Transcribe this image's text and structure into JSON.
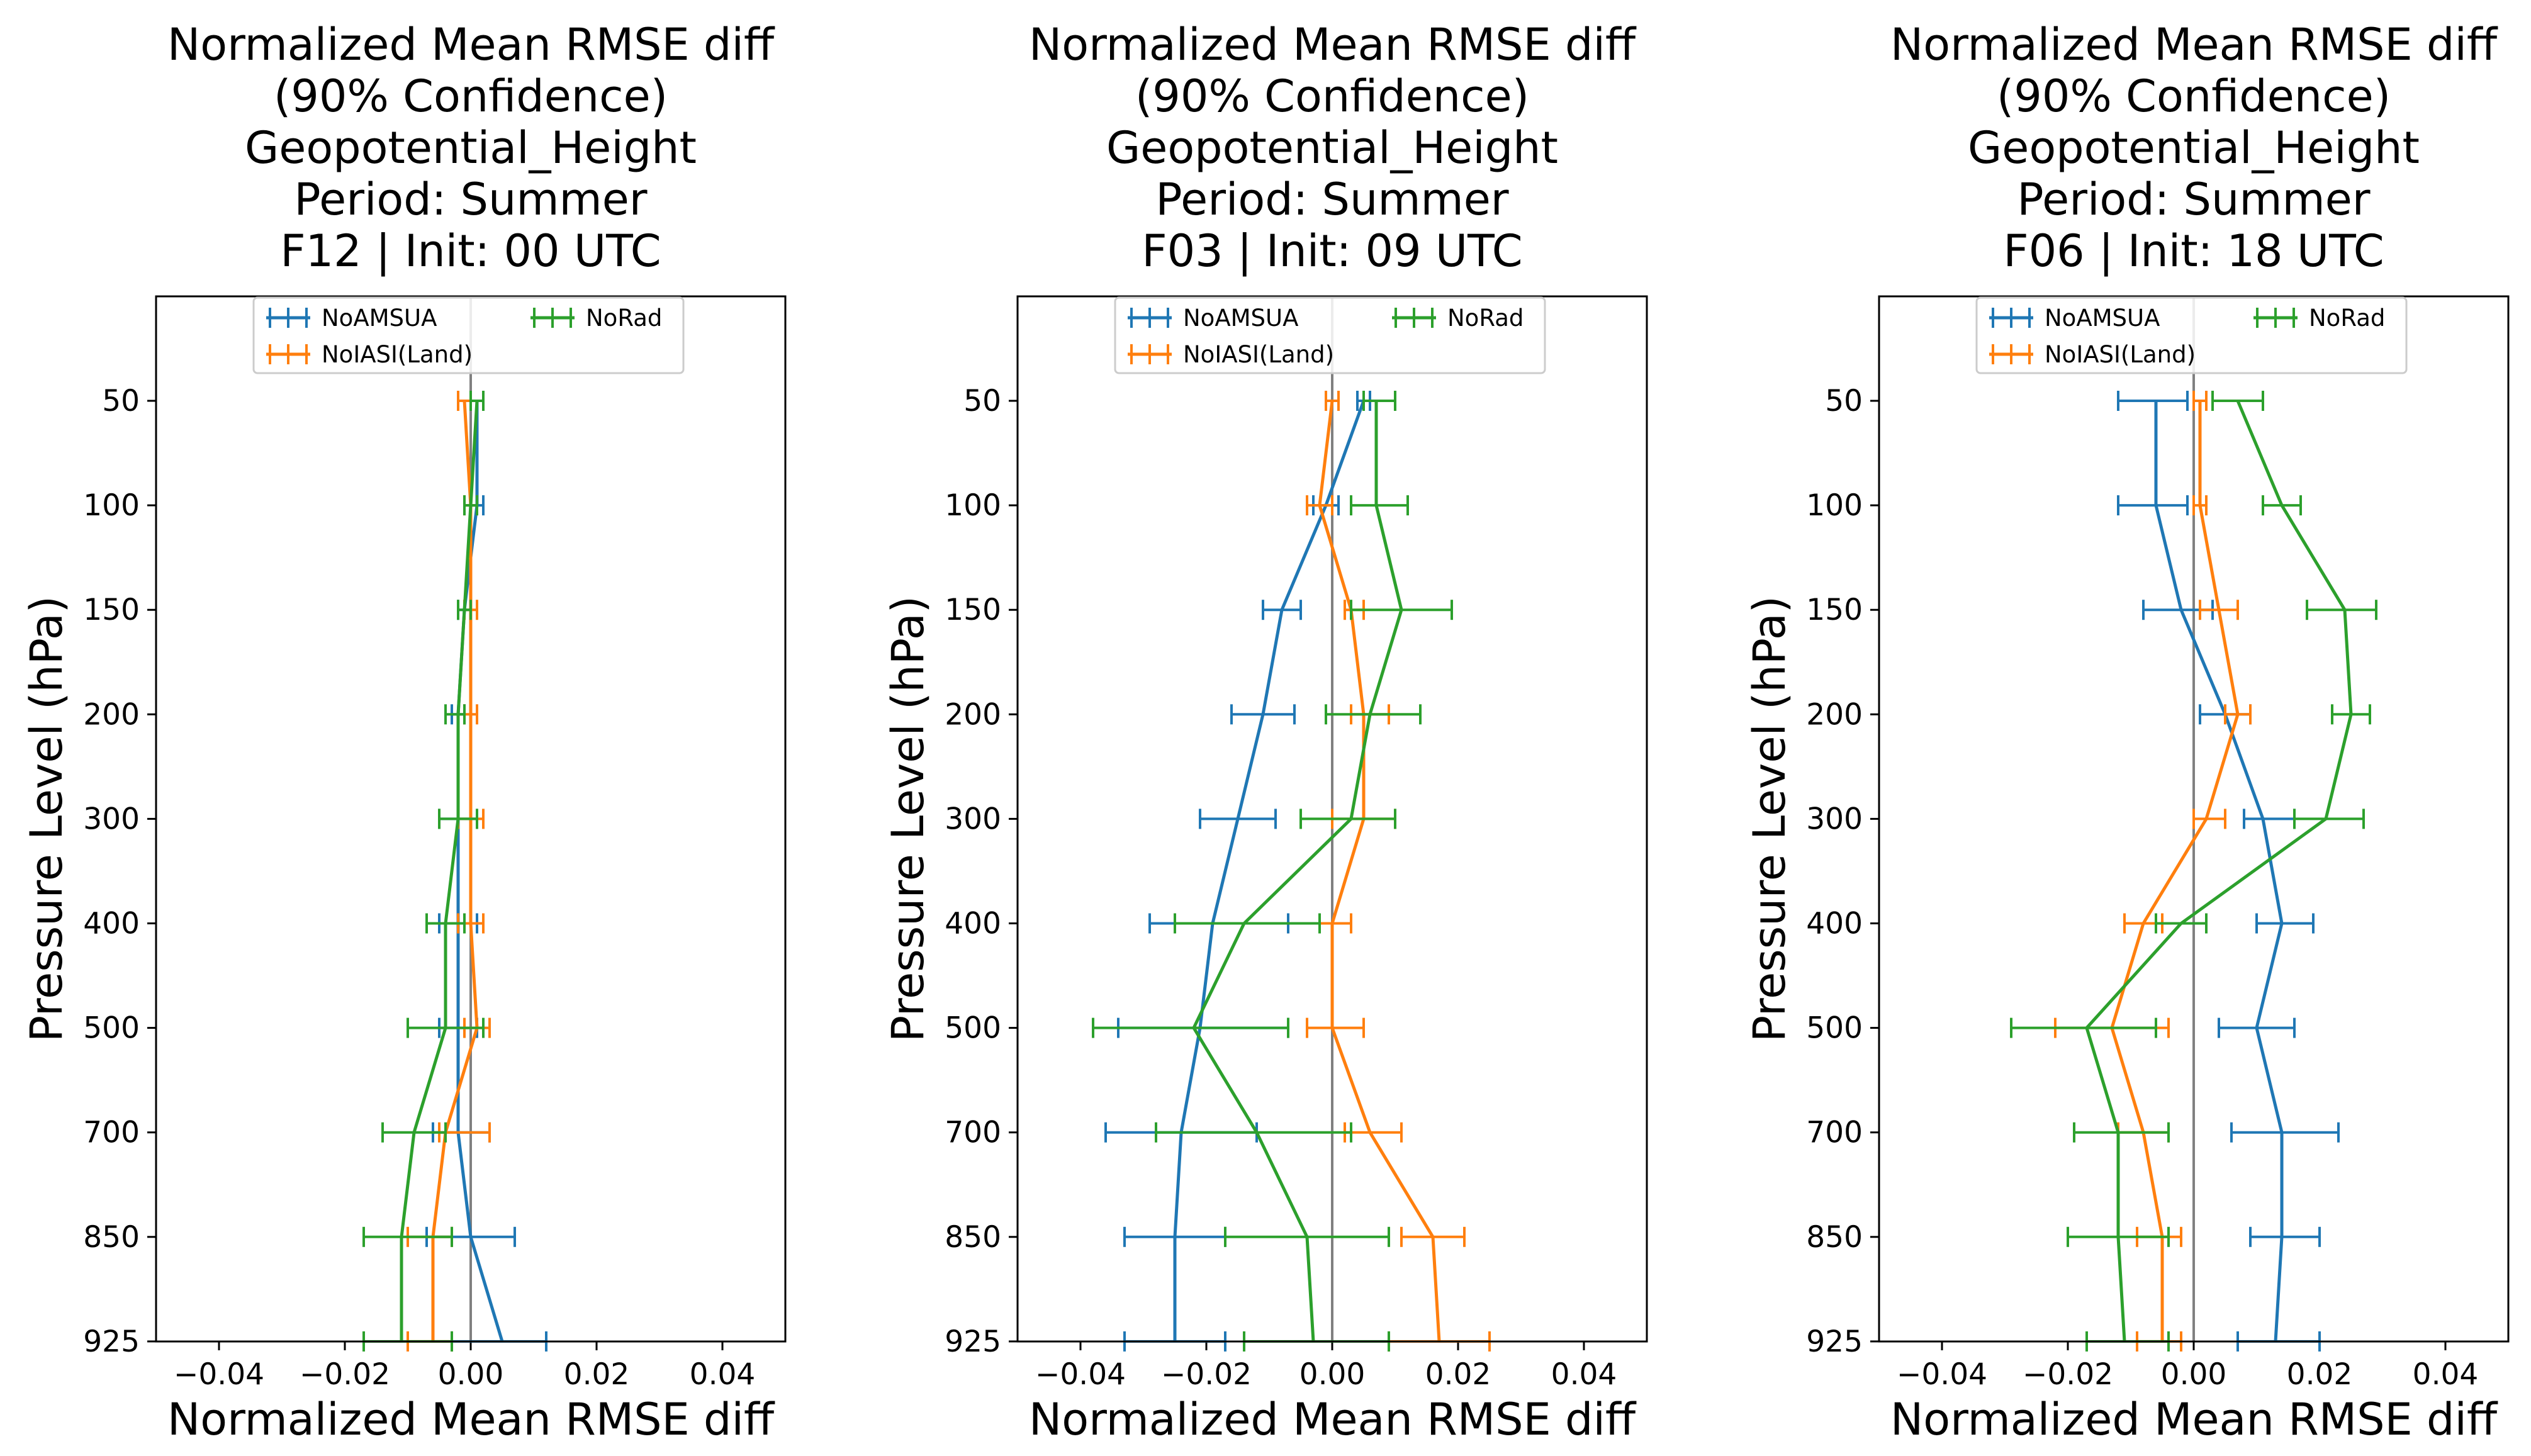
{
  "figure": {
    "colors": {
      "NoAMSUA": "#1f77b4",
      "NoIASI(Land)": "#ff7f0e",
      "NoRad": "#2ca02c",
      "zero_line": "#808080"
    }
  },
  "chart_data": [
    {
      "type": "line",
      "orientation": "horizontal-errorbar-profile",
      "title_lines": [
        "Normalized Mean RMSE diff",
        "(90% Confidence)",
        "Geopotential_Height",
        "Period: Summer",
        "F12 | Init: 00 UTC"
      ],
      "xlabel": "Normalized Mean RMSE diff",
      "ylabel": "Pressure Level (hPa)",
      "xlim": [
        -0.05,
        0.05
      ],
      "xticks": [
        -0.04,
        -0.02,
        0.0,
        0.02,
        0.04
      ],
      "xtick_labels": [
        "−0.04",
        "−0.02",
        "0.00",
        "0.02",
        "0.04"
      ],
      "levels": [
        "50",
        "100",
        "150",
        "200",
        "300",
        "400",
        "500",
        "700",
        "850",
        "925"
      ],
      "legend": {
        "location": "upper center",
        "entries": [
          "NoAMSUA",
          "NoIASI(Land)",
          "NoRad"
        ]
      },
      "series": [
        {
          "name": "NoAMSUA",
          "values": [
            0.001,
            0.001,
            -0.001,
            -0.002,
            -0.002,
            -0.002,
            -0.002,
            -0.002,
            0.0,
            0.005
          ],
          "lower": [
            0.0,
            0.0,
            -0.002,
            -0.003,
            -0.005,
            -0.005,
            -0.005,
            -0.006,
            -0.007,
            -0.003
          ],
          "upper": [
            0.002,
            0.002,
            0.0,
            -0.001,
            0.001,
            0.001,
            0.001,
            0.003,
            0.007,
            0.012
          ]
        },
        {
          "name": "NoIASI(Land)",
          "values": [
            -0.001,
            0.0,
            0.0,
            0.0,
            0.0,
            0.0,
            0.001,
            -0.004,
            -0.006,
            -0.006
          ],
          "lower": [
            -0.002,
            -0.001,
            -0.001,
            -0.001,
            -0.002,
            -0.002,
            -0.001,
            -0.005,
            -0.01,
            -0.01
          ],
          "upper": [
            0.0,
            0.001,
            0.001,
            0.001,
            0.002,
            0.002,
            0.003,
            0.003,
            -0.003,
            -0.003
          ]
        },
        {
          "name": "NoRad",
          "values": [
            0.001,
            0.0,
            -0.001,
            -0.002,
            -0.002,
            -0.004,
            -0.004,
            -0.009,
            -0.011,
            -0.011
          ],
          "lower": [
            0.0,
            -0.001,
            -0.002,
            -0.004,
            -0.005,
            -0.007,
            -0.01,
            -0.014,
            -0.017,
            -0.017
          ],
          "upper": [
            0.002,
            0.001,
            0.0,
            -0.001,
            0.001,
            -0.001,
            0.002,
            -0.004,
            -0.003,
            -0.003
          ]
        }
      ]
    },
    {
      "type": "line",
      "orientation": "horizontal-errorbar-profile",
      "title_lines": [
        "Normalized Mean RMSE diff",
        "(90% Confidence)",
        "Geopotential_Height",
        "Period: Summer",
        "F03 | Init: 09 UTC"
      ],
      "xlabel": "Normalized Mean RMSE diff",
      "ylabel": "Pressure Level (hPa)",
      "xlim": [
        -0.05,
        0.05
      ],
      "xticks": [
        -0.04,
        -0.02,
        0.0,
        0.02,
        0.04
      ],
      "xtick_labels": [
        "−0.04",
        "−0.02",
        "0.00",
        "0.02",
        "0.04"
      ],
      "levels": [
        "50",
        "100",
        "150",
        "200",
        "300",
        "400",
        "500",
        "700",
        "850",
        "925"
      ],
      "legend": {
        "location": "upper center",
        "entries": [
          "NoAMSUA",
          "NoIASI(Land)",
          "NoRad"
        ]
      },
      "series": [
        {
          "name": "NoAMSUA",
          "values": [
            0.005,
            -0.001,
            -0.008,
            -0.011,
            -0.015,
            -0.019,
            -0.021,
            -0.024,
            -0.025,
            -0.025
          ],
          "lower": [
            0.004,
            -0.003,
            -0.011,
            -0.016,
            -0.021,
            -0.029,
            -0.034,
            -0.036,
            -0.033,
            -0.033
          ],
          "upper": [
            0.006,
            0.001,
            -0.005,
            -0.006,
            -0.009,
            -0.007,
            -0.007,
            -0.012,
            -0.017,
            -0.017
          ]
        },
        {
          "name": "NoIASI(Land)",
          "values": [
            0.0,
            -0.002,
            0.003,
            0.005,
            0.005,
            0.0,
            0.0,
            0.006,
            0.016,
            0.017
          ],
          "lower": [
            -0.001,
            -0.004,
            0.002,
            0.003,
            0.0,
            -0.002,
            -0.004,
            0.002,
            0.011,
            0.009
          ],
          "upper": [
            0.001,
            0.0,
            0.005,
            0.009,
            0.01,
            0.003,
            0.005,
            0.011,
            0.021,
            0.025
          ]
        },
        {
          "name": "NoRad",
          "values": [
            0.007,
            0.007,
            0.011,
            0.006,
            0.003,
            -0.014,
            -0.022,
            -0.012,
            -0.004,
            -0.003
          ],
          "lower": [
            0.005,
            0.003,
            0.003,
            -0.001,
            -0.005,
            -0.025,
            -0.038,
            -0.028,
            -0.017,
            -0.014
          ],
          "upper": [
            0.01,
            0.012,
            0.019,
            0.014,
            0.01,
            -0.002,
            -0.007,
            0.003,
            0.009,
            0.009
          ]
        }
      ]
    },
    {
      "type": "line",
      "orientation": "horizontal-errorbar-profile",
      "title_lines": [
        "Normalized Mean RMSE diff",
        "(90% Confidence)",
        "Geopotential_Height",
        "Period: Summer",
        "F06 | Init: 18 UTC"
      ],
      "xlabel": "Normalized Mean RMSE diff",
      "ylabel": "Pressure Level (hPa)",
      "xlim": [
        -0.05,
        0.05
      ],
      "xticks": [
        -0.04,
        -0.02,
        0.0,
        0.02,
        0.04
      ],
      "xtick_labels": [
        "−0.04",
        "−0.02",
        "0.00",
        "0.02",
        "0.04"
      ],
      "levels": [
        "50",
        "100",
        "150",
        "200",
        "300",
        "400",
        "500",
        "700",
        "850",
        "925"
      ],
      "legend": {
        "location": "upper center",
        "entries": [
          "NoAMSUA",
          "NoIASI(Land)",
          "NoRad"
        ]
      },
      "series": [
        {
          "name": "NoAMSUA",
          "values": [
            -0.006,
            -0.006,
            -0.002,
            0.005,
            0.011,
            0.014,
            0.01,
            0.014,
            0.014,
            0.013
          ],
          "lower": [
            -0.012,
            -0.012,
            -0.008,
            0.001,
            0.008,
            0.01,
            0.004,
            0.006,
            0.009,
            0.007
          ],
          "upper": [
            -0.001,
            -0.001,
            0.003,
            0.009,
            0.016,
            0.019,
            0.016,
            0.023,
            0.02,
            0.02
          ]
        },
        {
          "name": "NoIASI(Land)",
          "values": [
            0.001,
            0.001,
            0.004,
            0.007,
            0.002,
            -0.008,
            -0.013,
            -0.008,
            -0.005,
            -0.005
          ],
          "lower": [
            0.0,
            0.0,
            0.001,
            0.005,
            0.0,
            -0.011,
            -0.022,
            -0.012,
            -0.009,
            -0.009
          ],
          "upper": [
            0.002,
            0.002,
            0.007,
            0.009,
            0.005,
            -0.005,
            -0.004,
            -0.004,
            -0.002,
            -0.002
          ]
        },
        {
          "name": "NoRad",
          "values": [
            0.007,
            0.014,
            0.024,
            0.025,
            0.021,
            -0.002,
            -0.017,
            -0.012,
            -0.012,
            -0.011
          ],
          "lower": [
            0.003,
            0.011,
            0.018,
            0.022,
            0.016,
            -0.006,
            -0.029,
            -0.019,
            -0.02,
            -0.017
          ],
          "upper": [
            0.011,
            0.017,
            0.029,
            0.028,
            0.027,
            0.002,
            -0.006,
            -0.004,
            -0.004,
            -0.004
          ]
        }
      ]
    }
  ]
}
